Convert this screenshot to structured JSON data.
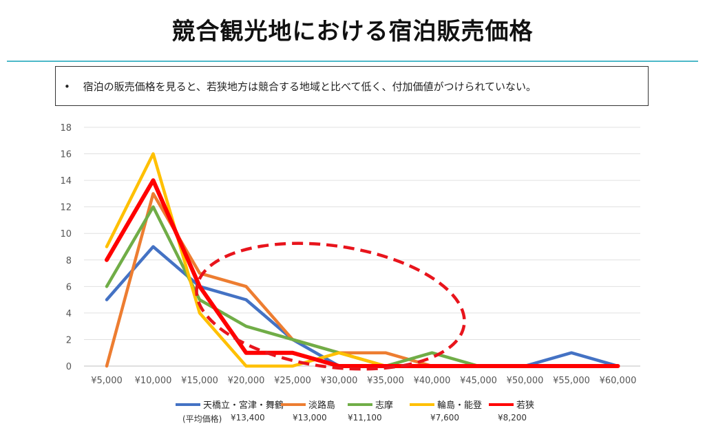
{
  "title": "競合観光地における宿泊販売価格",
  "note": {
    "bullet": "•",
    "text": "宿泊の販売価格を見ると、若狭地方は競合する地域と比べて低く、付加価値がつけられていない。"
  },
  "avg_label": "(平均価格)",
  "chart_data": {
    "type": "line",
    "title": "",
    "xlabel": "",
    "ylabel": "",
    "ylim": [
      0,
      18
    ],
    "yticks": [
      0,
      2,
      4,
      6,
      8,
      10,
      12,
      14,
      16,
      18
    ],
    "categories": [
      "¥5,000",
      "¥10,000",
      "¥15,000",
      "¥20,000",
      "¥25,000",
      "¥30,000",
      "¥35,000",
      "¥40,000",
      "¥45,000",
      "¥50,000",
      "¥55,000",
      "¥60,000"
    ],
    "grid": true,
    "legend": "bottom",
    "series": [
      {
        "name": "天橋立・宮津・舞鶴",
        "avg": "¥13,400",
        "color": "#4472c4",
        "values": [
          5,
          9,
          6,
          5,
          2,
          0,
          0,
          0,
          0,
          0,
          1,
          0
        ]
      },
      {
        "name": "淡路島",
        "avg": "¥13,000",
        "color": "#ed7d31",
        "values": [
          0,
          13,
          7,
          6,
          2,
          1,
          1,
          0,
          0,
          0,
          0,
          0
        ]
      },
      {
        "name": "志摩",
        "avg": "¥11,100",
        "color": "#70ad47",
        "values": [
          6,
          12,
          5,
          3,
          2,
          1,
          0,
          1,
          0,
          0,
          0,
          0
        ]
      },
      {
        "name": "輪島・能登",
        "avg": "¥7,600",
        "color": "#ffc000",
        "values": [
          9,
          16,
          4,
          0,
          0,
          1,
          0,
          0,
          0,
          0,
          0,
          0
        ]
      },
      {
        "name": "若狭",
        "avg": "¥8,200",
        "color": "#ff0000",
        "values": [
          8,
          14,
          6,
          1,
          1,
          0,
          0,
          0,
          0,
          0,
          0,
          0
        ]
      }
    ]
  }
}
